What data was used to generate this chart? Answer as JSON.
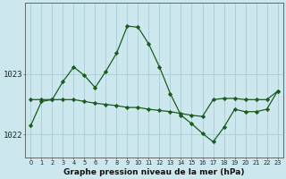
{
  "xlabel": "Graphe pression niveau de la mer (hPa)",
  "bg_color": "#cce8ee",
  "grid_color": "#aaccd4",
  "line_color": "#1a5c1a",
  "hours": [
    0,
    1,
    2,
    3,
    4,
    5,
    6,
    7,
    8,
    9,
    10,
    11,
    12,
    13,
    14,
    15,
    16,
    17,
    18,
    19,
    20,
    21,
    22,
    23
  ],
  "pressure1": [
    1022.15,
    1022.55,
    1022.58,
    1022.88,
    1023.12,
    1022.98,
    1022.78,
    1023.05,
    1023.35,
    1023.8,
    1023.78,
    1023.5,
    1023.12,
    1022.68,
    1022.32,
    1022.18,
    1022.02,
    1021.88,
    1022.12,
    1022.42,
    1022.38,
    1022.38,
    1022.42,
    1022.72
  ],
  "pressure2": [
    1022.58,
    1022.58,
    1022.58,
    1022.58,
    1022.58,
    1022.55,
    1022.52,
    1022.5,
    1022.48,
    1022.45,
    1022.45,
    1022.42,
    1022.4,
    1022.38,
    1022.35,
    1022.32,
    1022.3,
    1022.58,
    1022.6,
    1022.6,
    1022.58,
    1022.58,
    1022.58,
    1022.72
  ],
  "ylim_min": 1021.62,
  "ylim_max": 1024.18,
  "yticks": [
    1022.0,
    1023.0
  ],
  "ytick_labels": [
    "1022",
    "1023"
  ],
  "xtick_labels": [
    "0",
    "1",
    "2",
    "3",
    "4",
    "5",
    "6",
    "7",
    "8",
    "9",
    "10",
    "11",
    "12",
    "13",
    "14",
    "15",
    "16",
    "17",
    "18",
    "19",
    "20",
    "21",
    "22",
    "23"
  ],
  "figsize": [
    3.2,
    2.0
  ],
  "dpi": 100
}
